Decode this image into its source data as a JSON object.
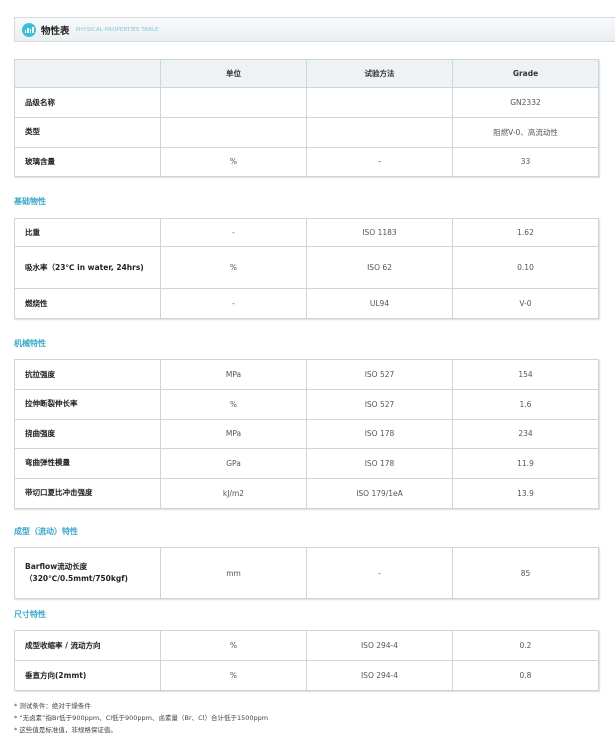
{
  "header": {
    "title": "物性表",
    "subtitle": "PHYSICAL PROPERTIES TABLE",
    "icon": "bar-chart-icon",
    "accent": "#3bbfd6"
  },
  "columns": [
    "",
    "单位",
    "试验方法",
    "Grade"
  ],
  "general": [
    {
      "name": "品级名称",
      "unit": "",
      "method": "",
      "value": "GN2332"
    },
    {
      "name": "类型",
      "unit": "",
      "method": "",
      "value": "阻燃V-0、高流动性"
    },
    {
      "name": "玻璃含量",
      "unit": "%",
      "method": "–",
      "value": "33"
    }
  ],
  "sections": [
    {
      "title": "基础物性",
      "rows": [
        {
          "name": "比重",
          "unit": "-",
          "method": "ISO 1183",
          "value": "1.62"
        },
        {
          "name": "吸水率（23℃ in water, 24hrs)",
          "unit": "%",
          "method": "ISO 62",
          "value": "0.10"
        },
        {
          "name": "燃烧性",
          "unit": "-",
          "method": "UL94",
          "value": "V-0"
        }
      ]
    },
    {
      "title": "机械特性",
      "rows": [
        {
          "name": "抗拉强度",
          "unit": "MPa",
          "method": "ISO 527",
          "value": "154"
        },
        {
          "name": "拉伸断裂伸长率",
          "unit": "%",
          "method": "ISO 527",
          "value": "1.6"
        },
        {
          "name": "挠曲强度",
          "unit": "MPa",
          "method": "ISO 178",
          "value": "234"
        },
        {
          "name": "弯曲弹性模量",
          "unit": "GPa",
          "method": "ISO 178",
          "value": "11.9"
        },
        {
          "name": "带切口夏比冲击强度",
          "unit": "kJ/m2",
          "method": "ISO 179/1eA",
          "value": "13.9"
        }
      ]
    },
    {
      "title": "成型（流动）特性",
      "rows": [
        {
          "name": "Barflow流动长度（320℃/0.5mmt/750kgf)",
          "unit": "mm",
          "method": "-",
          "value": "85"
        }
      ]
    },
    {
      "title": "尺寸特性",
      "rows": [
        {
          "name": "成型收缩率 / 流动方向",
          "unit": "%",
          "method": "ISO 294-4",
          "value": "0.2"
        },
        {
          "name": "垂直方向(2mmt)",
          "unit": "%",
          "method": "ISO 294-4",
          "value": "0.8"
        }
      ]
    }
  ],
  "notes": [
    "* 测试条件：绝对干燥条件",
    "* “无卤素”指Br低于900ppm、Cl低于900ppm、卤素量（Br、Cl）合计低于1500ppm",
    "* 这些值是标准值，非规格保证值。"
  ]
}
